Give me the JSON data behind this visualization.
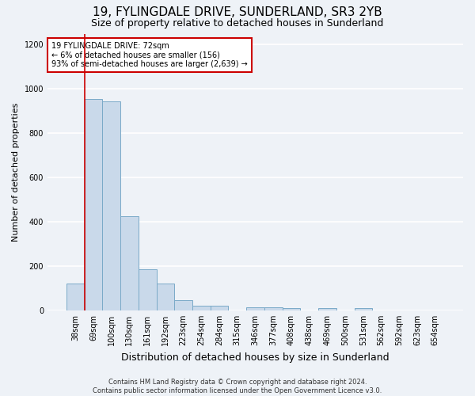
{
  "title": "19, FYLINGDALE DRIVE, SUNDERLAND, SR3 2YB",
  "subtitle": "Size of property relative to detached houses in Sunderland",
  "xlabel": "Distribution of detached houses by size in Sunderland",
  "ylabel": "Number of detached properties",
  "categories": [
    "38sqm",
    "69sqm",
    "100sqm",
    "130sqm",
    "161sqm",
    "192sqm",
    "223sqm",
    "254sqm",
    "284sqm",
    "315sqm",
    "346sqm",
    "377sqm",
    "408sqm",
    "438sqm",
    "469sqm",
    "500sqm",
    "531sqm",
    "562sqm",
    "592sqm",
    "623sqm",
    "654sqm"
  ],
  "values": [
    120,
    955,
    945,
    425,
    185,
    120,
    45,
    20,
    20,
    0,
    15,
    15,
    10,
    0,
    10,
    0,
    10,
    0,
    0,
    0,
    0
  ],
  "bar_color": "#c9d9ea",
  "bar_edge_color": "#7aaac8",
  "annotation_text": "19 FYLINGDALE DRIVE: 72sqm\n← 6% of detached houses are smaller (156)\n93% of semi-detached houses are larger (2,639) →",
  "annotation_box_color": "#ffffff",
  "annotation_box_edge_color": "#cc0000",
  "vline_color": "#cc0000",
  "vline_x": 1.0,
  "ylim": [
    0,
    1250
  ],
  "yticks": [
    0,
    200,
    400,
    600,
    800,
    1000,
    1200
  ],
  "footer_text": "Contains HM Land Registry data © Crown copyright and database right 2024.\nContains public sector information licensed under the Open Government Licence v3.0.",
  "background_color": "#eef2f7",
  "plot_bg_color": "#eef2f7",
  "grid_color": "#ffffff",
  "title_fontsize": 11,
  "subtitle_fontsize": 9,
  "ylabel_fontsize": 8,
  "xlabel_fontsize": 9,
  "tick_fontsize": 7,
  "annotation_fontsize": 7,
  "footer_fontsize": 6
}
